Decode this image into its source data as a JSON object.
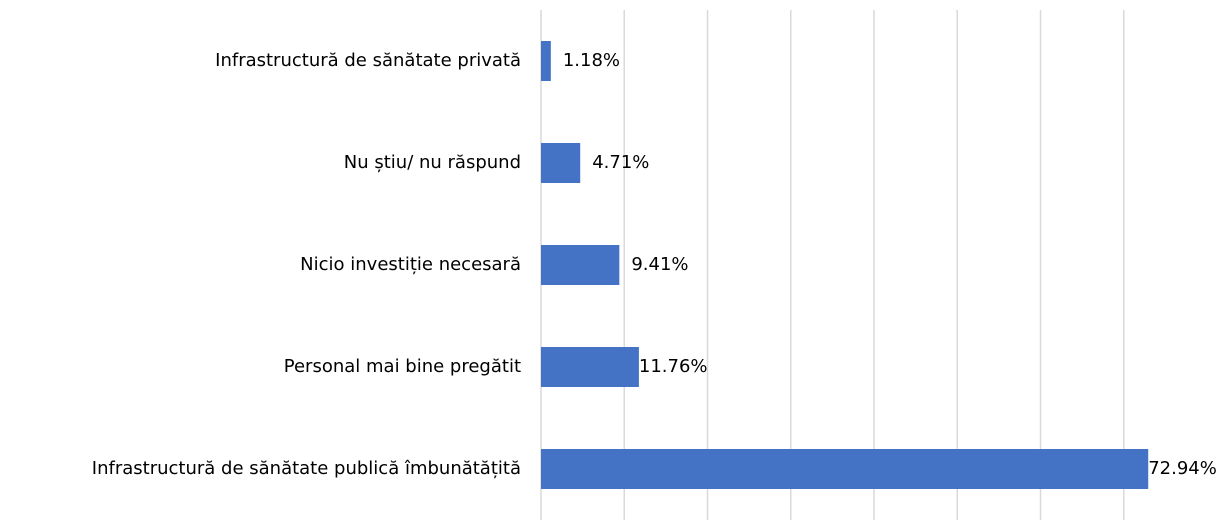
{
  "chart_data": {
    "type": "bar",
    "orientation": "horizontal",
    "categories": [
      "Infrastructură de sănătate privată",
      "Nu știu/ nu răspund",
      "Nicio investiție necesară",
      "Personal mai bine pregătit",
      "Infrastructură de sănătate publică îmbunătățită"
    ],
    "values": [
      1.18,
      4.71,
      9.41,
      11.76,
      72.94
    ],
    "value_labels": [
      "1.18%",
      "4.71%",
      "9.41%",
      "11.76%",
      "72.94%"
    ],
    "color": "#4472c4",
    "xlim": [
      0,
      80
    ],
    "xticks": [
      0,
      10,
      20,
      30,
      40,
      50,
      60,
      70
    ],
    "grid": true
  }
}
